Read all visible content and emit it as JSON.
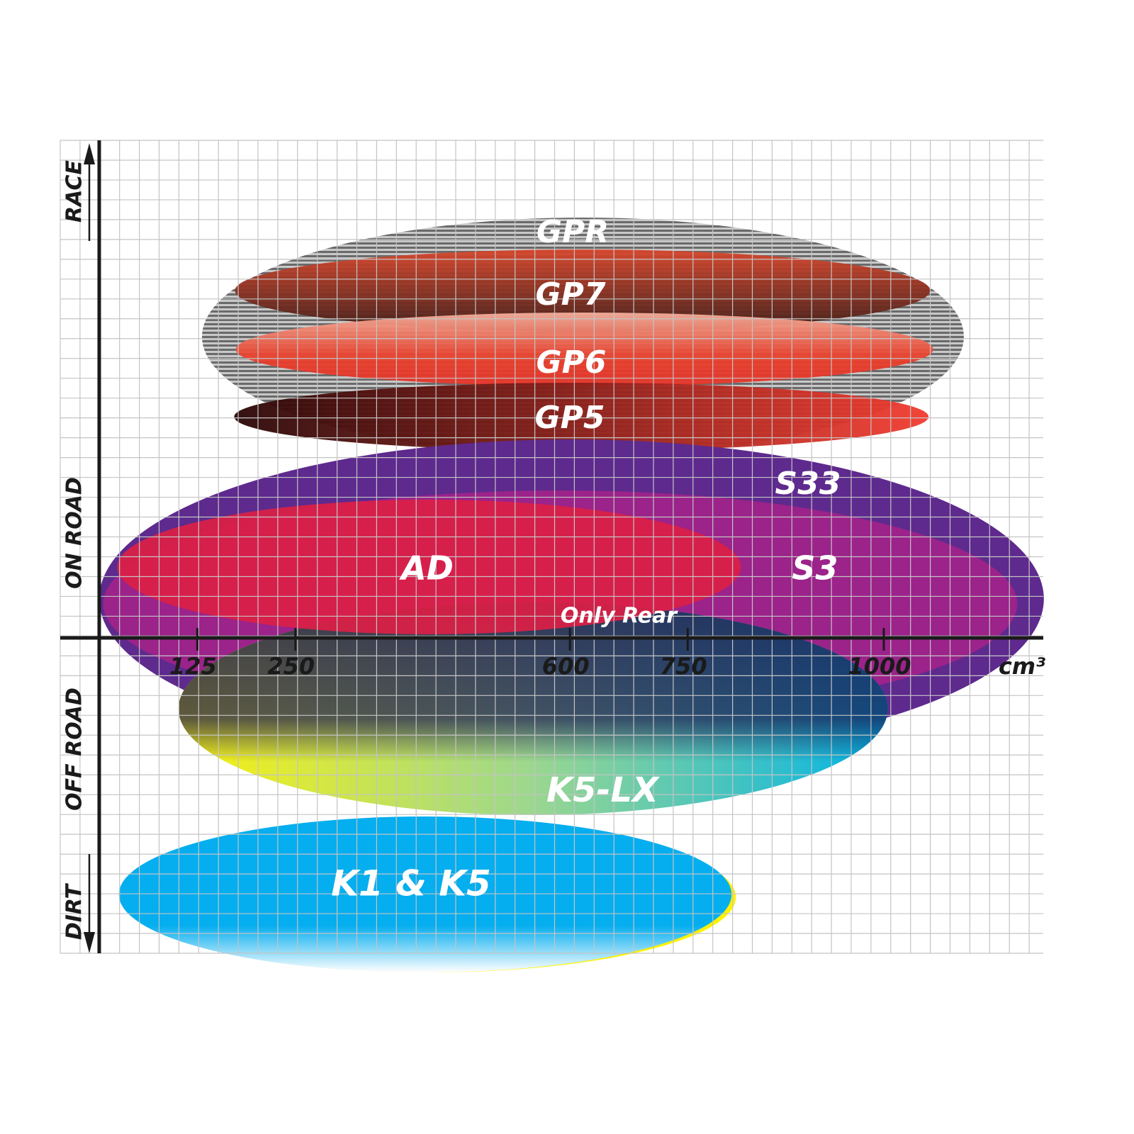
{
  "chart_data": {
    "type": "ellipse-positioning",
    "xlabel": "cm³",
    "x_ticks": [
      125,
      250,
      600,
      750,
      1000
    ],
    "x_unit": "cm³",
    "y_axis_labels": [
      "RACE",
      "ON ROAD",
      "OFF ROAD",
      "DIRT"
    ],
    "grid": true,
    "products": [
      {
        "name": "GPR",
        "cc_range": [
          131,
          1102
        ],
        "color": "#9a9a9a",
        "fill": "striped-gray"
      },
      {
        "name": "GP7",
        "cc_range": [
          173,
          1059
        ],
        "color": "#c8472e",
        "color2": "#4a2118"
      },
      {
        "name": "GP6",
        "cc_range": [
          174,
          1063
        ],
        "color": "#f0a08a",
        "color2": "#e5362a"
      },
      {
        "name": "GP5",
        "cc_range": [
          172,
          1057
        ],
        "color": "#3a0a0a",
        "color2": "#ef3a2f"
      },
      {
        "name": "S33",
        "cc_range": [
          0,
          1204
        ],
        "color": "#5e2a8e"
      },
      {
        "name": "S3",
        "cc_range": [
          5,
          1170
        ],
        "color": "#a22289"
      },
      {
        "name": "AD",
        "cc_range": [
          23,
          818
        ],
        "color": "#dc1f45"
      },
      {
        "name": "K5-LX",
        "cc_range": [
          101,
          1005
        ],
        "color": "#f5ec1a",
        "color2": "#00b0e6"
      },
      {
        "name": "K1 & K5",
        "cc_range": [
          25,
          806
        ],
        "color": "#05aeef"
      }
    ],
    "annotations": [
      "Only Rear"
    ]
  }
}
